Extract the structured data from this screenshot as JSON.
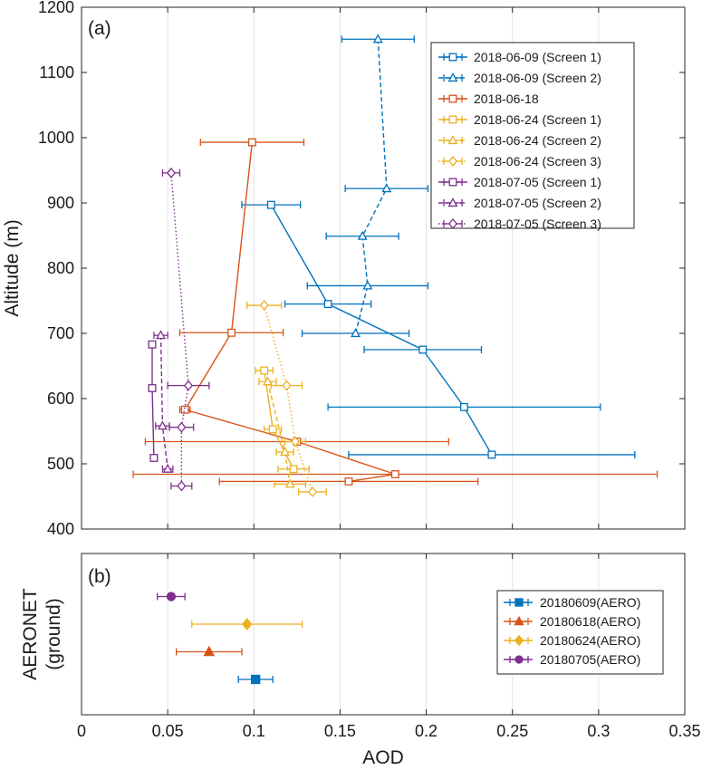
{
  "chart_data": [
    {
      "panel": "(a)",
      "type": "line",
      "xlabel": "AOD",
      "ylabel": "Altitude (m)",
      "xlim": [
        0,
        0.35
      ],
      "ylim": [
        400,
        1200
      ],
      "xticks": [
        "0",
        "0.05",
        "0.1",
        "0.15",
        "0.2",
        "0.25",
        "0.3",
        "0.35"
      ],
      "yticks": [
        "400",
        "500",
        "600",
        "700",
        "800",
        "900",
        "1000",
        "1100",
        "1200"
      ],
      "grid": "vertical",
      "legend": "top-right",
      "series": [
        {
          "name": "2018-06-09 (Screen 1)",
          "color": "#0072BD",
          "marker": "square",
          "dash": "solid",
          "points": [
            [
              0.11,
              897,
              0.017
            ],
            [
              0.143,
              745,
              0.025
            ],
            [
              0.198,
              675,
              0.034
            ],
            [
              0.222,
              587,
              0.079
            ],
            [
              0.238,
              514,
              0.083
            ]
          ]
        },
        {
          "name": "2018-06-09 (Screen 2)",
          "color": "#0072BD",
          "marker": "triangle",
          "dash": "dashed",
          "points": [
            [
              0.172,
              1151,
              0.021
            ],
            [
              0.177,
              922,
              0.024
            ],
            [
              0.163,
              849,
              0.021
            ],
            [
              0.166,
              773,
              0.035
            ],
            [
              0.159,
              700,
              0.031
            ]
          ]
        },
        {
          "name": "2018-06-18",
          "color": "#D95319",
          "marker": "square",
          "dash": "solid",
          "points": [
            [
              0.099,
              993,
              0.03
            ],
            [
              0.087,
              701,
              0.03
            ],
            [
              0.06,
              583,
              0.003
            ],
            [
              0.125,
              534,
              0.088
            ],
            [
              0.182,
              484,
              0.152
            ],
            [
              0.155,
              473,
              0.075
            ]
          ]
        },
        {
          "name": "2018-06-24 (Screen 1)",
          "color": "#EDB120",
          "marker": "square",
          "dash": "solid",
          "points": [
            [
              0.106,
              643,
              0.005
            ],
            [
              0.111,
              553,
              0.005
            ],
            [
              0.123,
              492,
              0.009
            ]
          ]
        },
        {
          "name": "2018-06-24 (Screen 2)",
          "color": "#EDB120",
          "marker": "triangle",
          "dash": "dashed",
          "points": [
            [
              0.108,
              626,
              0.005
            ],
            [
              0.118,
              518,
              0.005
            ],
            [
              0.121,
              469,
              0.009
            ]
          ]
        },
        {
          "name": "2018-06-24 (Screen 3)",
          "color": "#EDB120",
          "marker": "diamond",
          "dash": "dotted",
          "points": [
            [
              0.106,
              743,
              0.01
            ],
            [
              0.119,
              620,
              0.009
            ],
            [
              0.124,
              534,
              0.006
            ],
            [
              0.134,
              457,
              0.008
            ]
          ]
        },
        {
          "name": "2018-07-05 (Screen 1)",
          "color": "#7E2F8E",
          "marker": "square",
          "dash": "solid",
          "points": [
            [
              0.041,
              683,
              0.002
            ],
            [
              0.041,
              616,
              0.002
            ],
            [
              0.042,
              509,
              0.002
            ]
          ]
        },
        {
          "name": "2018-07-05 (Screen 2)",
          "color": "#7E2F8E",
          "marker": "triangle",
          "dash": "dashed",
          "points": [
            [
              0.046,
              697,
              0.004
            ],
            [
              0.047,
              558,
              0.004
            ],
            [
              0.05,
              492,
              0.003
            ]
          ]
        },
        {
          "name": "2018-07-05 (Screen 3)",
          "color": "#7E2F8E",
          "marker": "diamond",
          "dash": "dotted",
          "points": [
            [
              0.052,
              946,
              0.005
            ],
            [
              0.062,
              620,
              0.012
            ],
            [
              0.058,
              556,
              0.007
            ],
            [
              0.058,
              466,
              0.006
            ]
          ]
        }
      ]
    },
    {
      "panel": "(b)",
      "type": "scatter",
      "xlabel": "AOD",
      "ylabel_lines": [
        "AERONET",
        "(ground)"
      ],
      "xlim": [
        0,
        0.35
      ],
      "grid": "vertical",
      "legend": "right",
      "series": [
        {
          "name": "20180609(AERO)",
          "color": "#0072BD",
          "marker": "filled-square",
          "x": 0.101,
          "err": 0.01,
          "row": 0
        },
        {
          "name": "20180618(AERO)",
          "color": "#D95319",
          "marker": "filled-triangle",
          "x": 0.074,
          "err": 0.019,
          "row": 1
        },
        {
          "name": "20180624(AERO)",
          "color": "#EDB120",
          "marker": "filled-diamond",
          "x": 0.096,
          "err": 0.032,
          "row": 2
        },
        {
          "name": "20180705(AERO)",
          "color": "#7E2F8E",
          "marker": "filled-circle",
          "x": 0.052,
          "err": 0.008,
          "row": 3
        }
      ]
    }
  ]
}
